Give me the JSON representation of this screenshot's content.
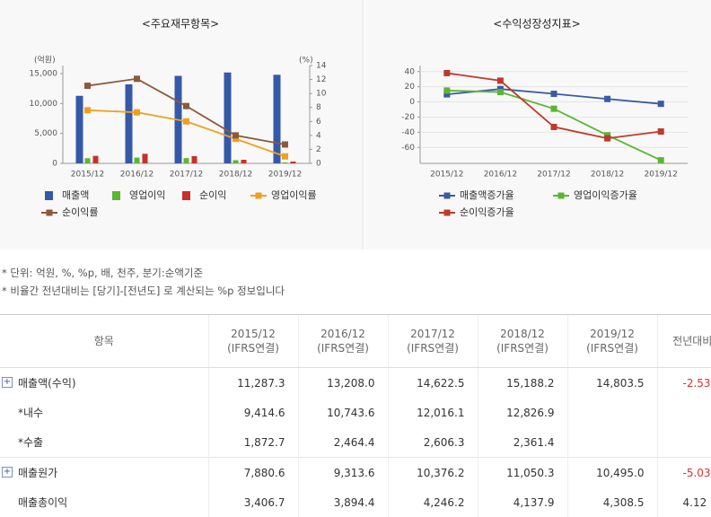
{
  "chart_data": [
    {
      "type": "bar",
      "title": "<주요재무항목>",
      "y_label": "(억원)",
      "y2_label": "(%)",
      "categories": [
        "2015/12",
        "2016/12",
        "2017/12",
        "2018/12",
        "2019/12"
      ],
      "ylim": [
        0,
        16350
      ],
      "yticks": [
        0,
        {
          "value": 5000,
          "label": "5,000"
        },
        {
          "value": 10000,
          "label": "10,000"
        },
        {
          "value": 15000,
          "label": "15,000"
        }
      ],
      "y2lim": [
        0,
        14
      ],
      "y2ticks": [
        0,
        2,
        4,
        6,
        8,
        10,
        12,
        14
      ],
      "grid": false,
      "series": [
        {
          "name": "매출액",
          "color": "#3558a8",
          "type": "bar",
          "values": [
            11287.3,
            13208.0,
            14622.5,
            15188.2,
            14803.5
          ]
        },
        {
          "name": "영업이익",
          "color": "#5cb82e",
          "type": "bar",
          "values": [
            858,
            964,
            877,
            532,
            148
          ]
        },
        {
          "name": "순이익",
          "color": "#c8312a",
          "type": "bar",
          "values": [
            1250,
            1600,
            1200,
            600,
            300
          ]
        },
        {
          "name": "영업이익률",
          "color": "#f0a020",
          "type": "line",
          "axis": "y2",
          "values": [
            7.6,
            7.3,
            6.0,
            3.5,
            1.0
          ]
        },
        {
          "name": "순이익률",
          "color": "#8b5a3c",
          "type": "line",
          "axis": "y2",
          "values": [
            11.1,
            12.1,
            8.2,
            4.0,
            2.7
          ]
        }
      ]
    },
    {
      "type": "line",
      "title": "<수익성장성지표>",
      "categories": [
        "2015/12",
        "2016/12",
        "2017/12",
        "2018/12",
        "2019/12"
      ],
      "ylim": [
        -81,
        48
      ],
      "yticks": [
        -60,
        -40,
        -20,
        0,
        20,
        40
      ],
      "grid": true,
      "series": [
        {
          "name": "매출액증가율",
          "color": "#3a5aa5",
          "type": "line",
          "values": [
            10,
            17.0,
            10.7,
            3.9,
            -2.5
          ]
        },
        {
          "name": "영업이익증가율",
          "color": "#5ab630",
          "type": "line",
          "values": [
            15,
            13,
            -9,
            -44,
            -77
          ]
        },
        {
          "name": "순이익증가율",
          "color": "#c0392b",
          "type": "line",
          "values": [
            38,
            28,
            -33,
            -48,
            -39
          ]
        }
      ]
    }
  ],
  "notes": [
    "* 단위: 억원, %, %p, 배, 천주, 분기:순액기준",
    "* 비율간 전년대비는 [당기]-[전년도] 로 계산되는 %p 정보입니다"
  ],
  "table": {
    "header": {
      "item": "항목",
      "periods": [
        {
          "period": "2015/12",
          "basis": "(IFRS연결)"
        },
        {
          "period": "2016/12",
          "basis": "(IFRS연결)"
        },
        {
          "period": "2017/12",
          "basis": "(IFRS연결)"
        },
        {
          "period": "2018/12",
          "basis": "(IFRS연결)"
        },
        {
          "period": "2019/12",
          "basis": "(IFRS연결)"
        }
      ],
      "change": "전년대비"
    },
    "rows": [
      {
        "label": "매출액(수익)",
        "expandable": true,
        "values": [
          "11,287.3",
          "13,208.0",
          "14,622.5",
          "15,188.2",
          "14,803.5"
        ],
        "change": "-2.53",
        "change_color": "#e0302a"
      },
      {
        "label": "*내수",
        "expandable": false,
        "values": [
          "9,414.6",
          "10,743.6",
          "12,016.1",
          "12,826.9",
          null
        ],
        "change": null
      },
      {
        "label": "*수출",
        "expandable": false,
        "values": [
          "1,872.7",
          "2,464.4",
          "2,606.3",
          "2,361.4",
          null
        ],
        "change": null
      },
      {
        "label": "매출원가",
        "expandable": true,
        "values": [
          "7,880.6",
          "9,313.6",
          "10,376.2",
          "11,050.3",
          "10,495.0"
        ],
        "change": "-5.03",
        "change_color": "#e0302a"
      },
      {
        "label": "매출총이익",
        "expandable": false,
        "values": [
          "3,406.7",
          "3,894.4",
          "4,246.2",
          "4,137.9",
          "4,308.5"
        ],
        "change": "4.12",
        "change_color": "#333333"
      }
    ]
  }
}
